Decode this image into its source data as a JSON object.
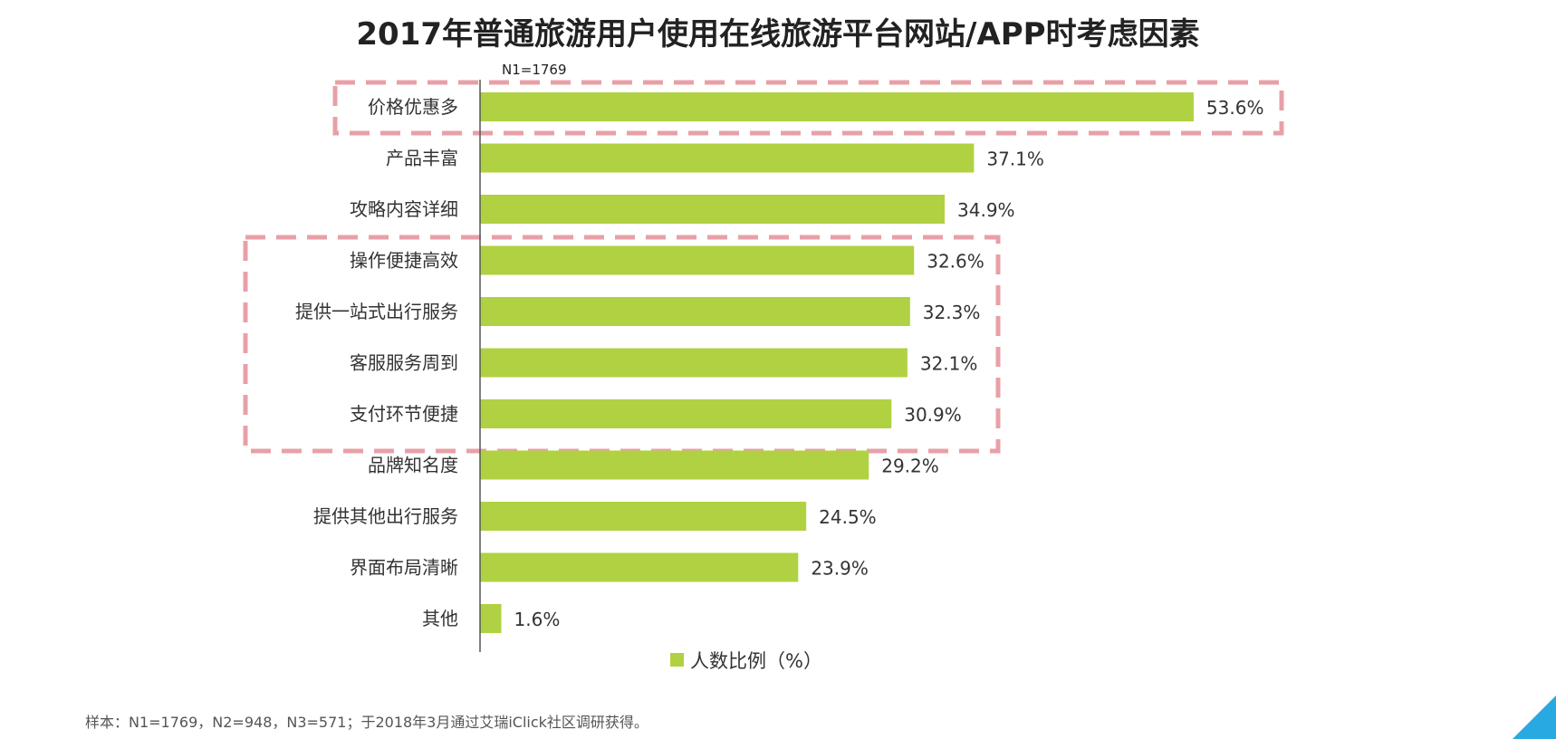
{
  "title": "2017年普通旅游用户使用在线旅游平台网站/APP时考虑因素",
  "sample_note": "样本：N1=1769，N2=948，N3=571；于2018年3月通过艾瑞iClick社区调研获得。",
  "colors": {
    "bar": "#b0d142",
    "highlight_box": "#e8a0a8",
    "axis": "#555555",
    "corner": "#29a9e1"
  },
  "chart_data": {
    "type": "bar",
    "orientation": "horizontal",
    "n_label": "N1=1769",
    "categories": [
      "价格优惠多",
      "产品丰富",
      "攻略内容详细",
      "操作便捷高效",
      "提供一站式出行服务",
      "客服服务周到",
      "支付环节便捷",
      "品牌知名度",
      "提供其他出行服务",
      "界面布局清晰",
      "其他"
    ],
    "series": [
      {
        "name": "人数比例（%）",
        "values": [
          53.6,
          37.1,
          34.9,
          32.6,
          32.3,
          32.1,
          30.9,
          29.2,
          24.5,
          23.9,
          1.6
        ],
        "value_labels": [
          "53.6%",
          "37.1%",
          "34.9%",
          "32.6%",
          "32.3%",
          "32.1%",
          "30.9%",
          "29.2%",
          "24.5%",
          "23.9%",
          "1.6%"
        ]
      }
    ],
    "xlim": [
      0,
      60
    ],
    "grid": false,
    "legend_position": "bottom",
    "highlight_groups": [
      [
        0,
        0
      ],
      [
        3,
        6
      ]
    ]
  }
}
